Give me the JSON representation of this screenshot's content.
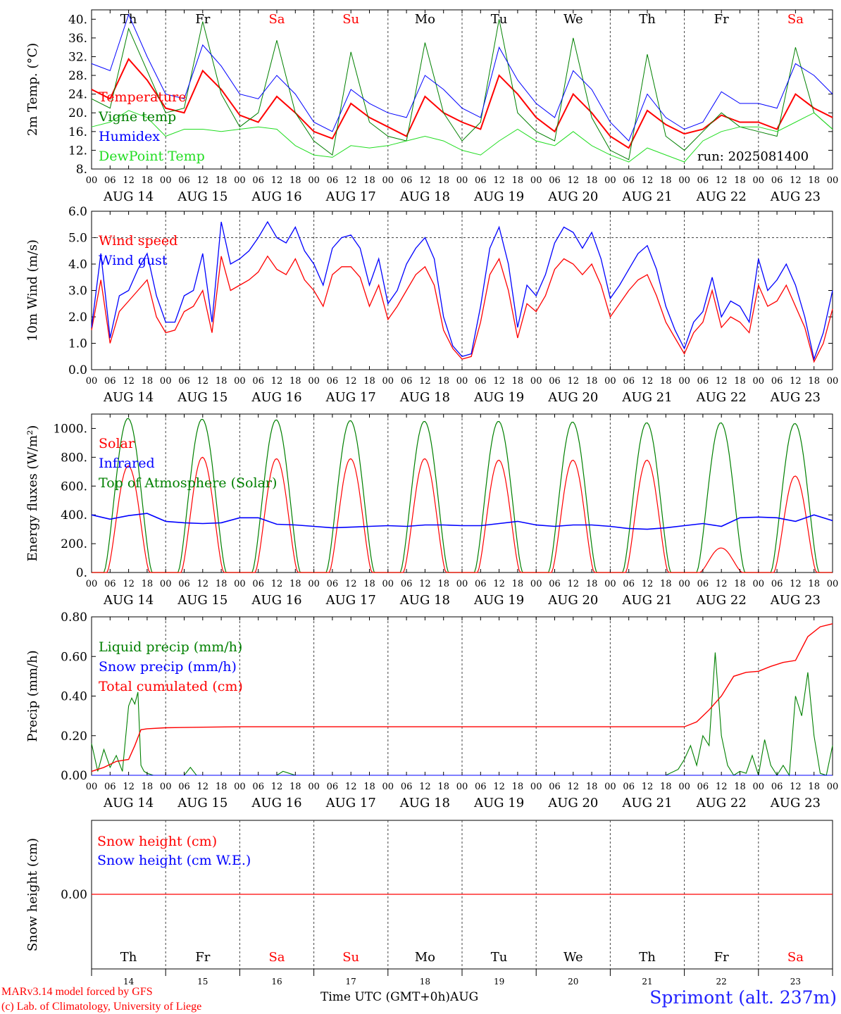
{
  "days": {
    "weekday": [
      "Th",
      "Fr",
      "Sa",
      "Su",
      "Mo",
      "Tu",
      "We",
      "Th",
      "Fr",
      "Sa"
    ],
    "weekend_flags": [
      false,
      false,
      true,
      true,
      false,
      false,
      false,
      false,
      false,
      true
    ],
    "date_labels": [
      "AUG 14",
      "AUG 15",
      "AUG 16",
      "AUG 17",
      "AUG 18",
      "AUG 19",
      "AUG 20",
      "AUG 21",
      "AUG 22",
      "AUG 23"
    ],
    "bottom_numbers": [
      "14",
      "15",
      "16",
      "17",
      "18",
      "19",
      "20",
      "21",
      "22",
      "23"
    ],
    "hour_ticks": [
      "00",
      "06",
      "12",
      "18"
    ],
    "final_tick": "00"
  },
  "colors": {
    "red": "#ff0000",
    "green": "#008000",
    "blue": "#0000ff",
    "lightgreen": "#22dd22",
    "grid": "#444444"
  },
  "footer": {
    "line1": "MARv3.14 model forced by GFS",
    "line2": "(c) Lab. of Climatology, University of Liege",
    "xlabel": "Time UTC (GMT+0h)AUG",
    "station": "Sprimont (alt. 237m)"
  },
  "chart_data": [
    {
      "type": "line",
      "ylabel": "2m Temp. (°C)",
      "ylim": [
        8,
        42
      ],
      "yticks": [
        "8.",
        "12.",
        "16.",
        "20.",
        "24.",
        "28.",
        "32.",
        "36.",
        "40."
      ],
      "annotation": "run: 2025081400",
      "legend": [
        {
          "label": "Temperature",
          "color": "red"
        },
        {
          "label": "Vigne temp",
          "color": "green"
        },
        {
          "label": "Humidex",
          "color": "blue"
        },
        {
          "label": "DewPoint Temp",
          "color": "lightgreen"
        }
      ],
      "x_hours": [
        0,
        6,
        12,
        18,
        24,
        30,
        36,
        42,
        48,
        54,
        60,
        66,
        72,
        78,
        84,
        90,
        96,
        102,
        108,
        114,
        120,
        126,
        132,
        138,
        144,
        150,
        156,
        162,
        168,
        174,
        180,
        186,
        192,
        198,
        204,
        210,
        216,
        222,
        228,
        234,
        240
      ],
      "series": [
        {
          "name": "Temperature",
          "color": "red",
          "values": [
            25,
            23,
            31.5,
            27,
            21,
            20,
            29,
            25,
            19.5,
            18,
            23.5,
            20,
            16,
            14.5,
            22,
            19,
            17,
            15,
            23.5,
            20,
            18,
            16.5,
            28,
            24,
            19,
            16,
            24,
            20,
            15,
            12.5,
            20.5,
            17.5,
            15.5,
            16.5,
            19.5,
            18,
            18,
            16.5,
            24,
            21,
            19
          ]
        },
        {
          "name": "Vigne temp",
          "color": "green",
          "values": [
            23,
            21,
            38,
            29,
            20,
            21,
            39.5,
            24,
            17,
            20,
            35.5,
            20,
            14,
            11,
            33,
            18,
            15,
            14,
            35,
            20,
            14,
            18,
            40,
            20,
            16,
            14,
            36,
            19,
            12,
            10,
            32.5,
            15,
            12,
            16,
            20,
            17,
            16,
            15,
            34,
            20,
            16.5
          ]
        },
        {
          "name": "Humidex",
          "color": "blue",
          "values": [
            30.5,
            29,
            41,
            32,
            24,
            23,
            34.5,
            30,
            24,
            23,
            28,
            24,
            18,
            16,
            25,
            22,
            20,
            19,
            28,
            25,
            21,
            19,
            34,
            27,
            22,
            19,
            29,
            25,
            18,
            14,
            24,
            19,
            16.5,
            18,
            24.5,
            22,
            22,
            21,
            30.5,
            28,
            24
          ]
        },
        {
          "name": "DewPoint Temp",
          "color": "lightgreen",
          "values": [
            17,
            18,
            20.5,
            19,
            15,
            16.5,
            16.5,
            16,
            16.5,
            17,
            16.5,
            13,
            11,
            10.5,
            13,
            12.5,
            13,
            14,
            15,
            14,
            12,
            11,
            14,
            16.5,
            14,
            13,
            16,
            13,
            11,
            9.5,
            12.5,
            11,
            9.5,
            14,
            16,
            17,
            17,
            16,
            18,
            20,
            16.5
          ]
        }
      ]
    },
    {
      "type": "line",
      "ylabel": "10m Wind (m/s)",
      "ylim": [
        0,
        6
      ],
      "yticks": [
        "0.0",
        "1.0",
        "2.0",
        "3.0",
        "4.0",
        "5.0",
        "6.0"
      ],
      "reference_line": 5,
      "legend": [
        {
          "label": "Wind speed",
          "color": "red"
        },
        {
          "label": "Wind gust",
          "color": "blue"
        }
      ],
      "x_hours": [
        0,
        3,
        6,
        9,
        12,
        15,
        18,
        21,
        24,
        27,
        30,
        33,
        36,
        39,
        42,
        45,
        48,
        51,
        54,
        57,
        60,
        63,
        66,
        69,
        72,
        75,
        78,
        81,
        84,
        87,
        90,
        93,
        96,
        99,
        102,
        105,
        108,
        111,
        114,
        117,
        120,
        123,
        126,
        129,
        132,
        135,
        138,
        141,
        144,
        147,
        150,
        153,
        156,
        159,
        162,
        165,
        168,
        171,
        174,
        177,
        180,
        183,
        186,
        189,
        192,
        195,
        198,
        201,
        204,
        207,
        210,
        213,
        216,
        219,
        222,
        225,
        228,
        231,
        234,
        237,
        240
      ],
      "series": [
        {
          "name": "Wind speed",
          "color": "red",
          "values": [
            1.5,
            3.4,
            1.0,
            2.2,
            2.6,
            3.0,
            3.4,
            2.0,
            1.4,
            1.5,
            2.2,
            2.4,
            3.0,
            1.4,
            4.3,
            3.0,
            3.2,
            3.4,
            3.7,
            4.3,
            3.8,
            3.6,
            4.2,
            3.4,
            3.0,
            2.4,
            3.6,
            3.9,
            3.9,
            3.5,
            2.4,
            3.2,
            1.9,
            2.4,
            3.0,
            3.6,
            3.9,
            3.2,
            1.5,
            0.8,
            0.4,
            0.5,
            1.8,
            3.6,
            4.2,
            3.0,
            1.2,
            2.5,
            2.2,
            2.8,
            3.8,
            4.2,
            4.0,
            3.6,
            4.0,
            3.2,
            2.0,
            2.5,
            3.0,
            3.4,
            3.6,
            2.8,
            1.8,
            1.2,
            0.6,
            1.4,
            1.8,
            3.0,
            1.6,
            2.0,
            1.8,
            1.4,
            3.2,
            2.4,
            2.6,
            3.2,
            2.4,
            1.6,
            0.3,
            1.0,
            2.3
          ]
        },
        {
          "name": "Wind gust",
          "color": "blue",
          "values": [
            1.6,
            4.4,
            1.2,
            2.8,
            3.0,
            3.8,
            4.4,
            2.8,
            1.8,
            1.8,
            2.8,
            3.0,
            4.4,
            1.8,
            5.6,
            4.0,
            4.2,
            4.5,
            5.0,
            5.6,
            5.0,
            4.8,
            5.4,
            4.5,
            4.0,
            3.2,
            4.6,
            5.0,
            5.1,
            4.6,
            3.2,
            4.2,
            2.5,
            3.0,
            4.0,
            4.6,
            5.0,
            4.2,
            2.0,
            0.9,
            0.5,
            0.6,
            2.4,
            4.6,
            5.4,
            4.0,
            1.6,
            3.2,
            2.8,
            3.6,
            4.8,
            5.4,
            5.2,
            4.6,
            5.2,
            4.2,
            2.7,
            3.2,
            3.8,
            4.4,
            4.7,
            3.8,
            2.4,
            1.5,
            0.8,
            1.8,
            2.2,
            3.5,
            2.0,
            2.6,
            2.4,
            1.8,
            4.2,
            3.0,
            3.4,
            4.0,
            3.2,
            2.0,
            0.4,
            1.4,
            3.0
          ]
        }
      ]
    },
    {
      "type": "line",
      "ylabel": "Energy fluxes (W/m²)",
      "ylim": [
        0,
        1100
      ],
      "yticks": [
        "0.",
        "200.",
        "400.",
        "600.",
        "800.",
        "1000."
      ],
      "legend": [
        {
          "label": "Solar",
          "color": "red"
        },
        {
          "label": "Infrared",
          "color": "blue"
        },
        {
          "label": "Top of Atmosphere (Solar)",
          "color": "green"
        }
      ],
      "daily_solar_peak": [
        740,
        800,
        790,
        790,
        790,
        780,
        780,
        780,
        170,
        670
      ],
      "daily_toa_peak": [
        1070,
        1065,
        1060,
        1055,
        1050,
        1050,
        1045,
        1040,
        1040,
        1035
      ],
      "infrared": {
        "x_hours": [
          0,
          6,
          12,
          18,
          24,
          30,
          36,
          42,
          48,
          54,
          60,
          66,
          72,
          78,
          84,
          90,
          96,
          102,
          108,
          114,
          120,
          126,
          132,
          138,
          144,
          150,
          156,
          162,
          168,
          174,
          180,
          186,
          192,
          198,
          204,
          210,
          216,
          222,
          228,
          234,
          240
        ],
        "values": [
          400,
          370,
          395,
          410,
          355,
          345,
          340,
          345,
          380,
          380,
          335,
          330,
          320,
          310,
          315,
          320,
          325,
          320,
          330,
          330,
          325,
          325,
          340,
          355,
          330,
          320,
          330,
          330,
          320,
          305,
          300,
          310,
          325,
          340,
          320,
          380,
          385,
          380,
          355,
          400,
          360
        ]
      }
    },
    {
      "type": "line",
      "ylabel": "Precip (mm/h)",
      "ylim": [
        0,
        0.8
      ],
      "yticks": [
        "0.00",
        "0.20",
        "0.40",
        "0.60",
        "0.80"
      ],
      "legend": [
        {
          "label": "Liquid precip (mm/h)",
          "color": "green"
        },
        {
          "label": "Snow precip (mm/h)",
          "color": "blue"
        },
        {
          "label": "Total cumulated (cm)",
          "color": "red"
        }
      ],
      "liquid": {
        "x_hours": [
          0,
          2,
          4,
          6,
          8,
          10,
          12,
          13,
          14,
          15,
          16,
          17,
          18,
          20,
          24,
          30,
          32,
          34,
          36,
          48,
          60,
          62,
          64,
          66,
          68,
          168,
          186,
          190,
          192,
          194,
          196,
          198,
          200,
          202,
          204,
          206,
          208,
          210,
          212,
          214,
          216,
          218,
          220,
          222,
          224,
          226,
          228,
          230,
          232,
          234,
          236,
          238,
          240
        ],
        "values": [
          0.16,
          0.02,
          0.13,
          0.04,
          0.1,
          0.02,
          0.35,
          0.39,
          0.36,
          0.42,
          0.05,
          0.02,
          0.01,
          0.0,
          0.0,
          0.0,
          0.04,
          0.0,
          0.0,
          0.0,
          0.0,
          0.02,
          0.01,
          0.0,
          0.0,
          0.0,
          0.0,
          0.03,
          0.08,
          0.15,
          0.05,
          0.2,
          0.15,
          0.62,
          0.2,
          0.05,
          0.0,
          0.02,
          0.01,
          0.1,
          0.0,
          0.18,
          0.05,
          0.0,
          0.05,
          0.0,
          0.4,
          0.3,
          0.52,
          0.2,
          0.01,
          0.0,
          0.15
        ]
      },
      "cumulated": {
        "x_hours": [
          0,
          4,
          8,
          12,
          14,
          16,
          18,
          24,
          36,
          48,
          60,
          192,
          196,
          200,
          204,
          208,
          212,
          216,
          220,
          224,
          228,
          232,
          236,
          240
        ],
        "values": [
          0.02,
          0.04,
          0.07,
          0.08,
          0.15,
          0.23,
          0.235,
          0.24,
          0.243,
          0.245,
          0.245,
          0.245,
          0.27,
          0.33,
          0.4,
          0.5,
          0.52,
          0.525,
          0.55,
          0.57,
          0.58,
          0.7,
          0.75,
          0.765
        ]
      }
    },
    {
      "type": "line",
      "ylabel": "Snow height (cm)",
      "ytick": "0.00",
      "legend": [
        {
          "label": "Snow height (cm)",
          "color": "red"
        },
        {
          "label": "Snow height (cm W.E.)",
          "color": "blue"
        }
      ],
      "values": [
        0,
        0
      ]
    }
  ]
}
